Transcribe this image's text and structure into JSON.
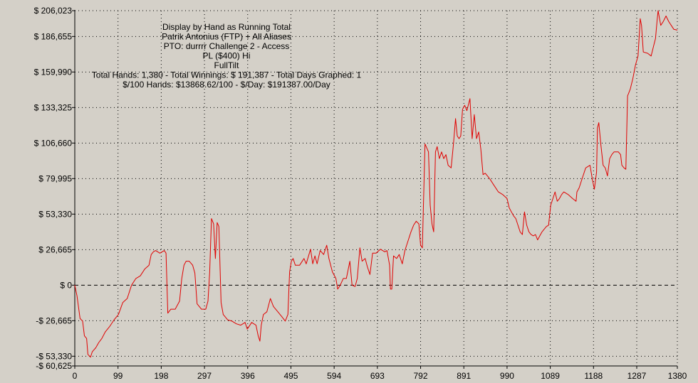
{
  "colors": {
    "background": "#d4d0c8",
    "series_line": "#e00000",
    "grid": "#000000"
  },
  "chart_data": {
    "type": "line",
    "title_lines": [
      "Display by Hand as Running Total",
      "Patrik Antonius (FTP) + All Aliases",
      "PTO: durrrr Challenge 2 - Access",
      "PL ($400) Hi",
      "FullTilt",
      "Total Hands: 1,380 - Total Winnings: $ 191,387 - Total Days Graphed: 1",
      "$/100 Hands: $13868.62/100 - $/Day: $191387.00/Day"
    ],
    "xlabel": "",
    "ylabel": "",
    "xlim": [
      0,
      1380
    ],
    "ylim": [
      -60625,
      206023
    ],
    "grid": true,
    "legend": "none",
    "x_ticks": [
      {
        "value": 0,
        "label": "0"
      },
      {
        "value": 99,
        "label": "99"
      },
      {
        "value": 198,
        "label": "198"
      },
      {
        "value": 297,
        "label": "297"
      },
      {
        "value": 396,
        "label": "396"
      },
      {
        "value": 495,
        "label": "495"
      },
      {
        "value": 594,
        "label": "594"
      },
      {
        "value": 693,
        "label": "693"
      },
      {
        "value": 792,
        "label": "792"
      },
      {
        "value": 891,
        "label": "891"
      },
      {
        "value": 990,
        "label": "990"
      },
      {
        "value": 1089,
        "label": "1089"
      },
      {
        "value": 1188,
        "label": "1188"
      },
      {
        "value": 1287,
        "label": "1287"
      },
      {
        "value": 1380,
        "label": "1380"
      }
    ],
    "y_ticks": [
      {
        "value": 206023,
        "label": "$ 206,023"
      },
      {
        "value": 186655,
        "label": "$ 186,655"
      },
      {
        "value": 159990,
        "label": "$ 159,990"
      },
      {
        "value": 133325,
        "label": "$ 133,325"
      },
      {
        "value": 106660,
        "label": "$ 106,660"
      },
      {
        "value": 79995,
        "label": "$ 79,995"
      },
      {
        "value": 53330,
        "label": "$ 53,330"
      },
      {
        "value": 26665,
        "label": "$ 26,665"
      },
      {
        "value": 0,
        "label": "$ 0"
      },
      {
        "value": -26665,
        "label": "-$ 26,665"
      },
      {
        "value": -53330,
        "label": "-$ 53,330"
      },
      {
        "value": -60625,
        "label": "-$ 60,625"
      }
    ],
    "series": [
      {
        "values": [
          [
            0,
            0
          ],
          [
            5,
            -8000
          ],
          [
            12,
            -25000
          ],
          [
            18,
            -27000
          ],
          [
            22,
            -38000
          ],
          [
            27,
            -40000
          ],
          [
            30,
            -52000
          ],
          [
            36,
            -54000
          ],
          [
            40,
            -50000
          ],
          [
            48,
            -47000
          ],
          [
            55,
            -43000
          ],
          [
            62,
            -40000
          ],
          [
            70,
            -35000
          ],
          [
            80,
            -31000
          ],
          [
            90,
            -26000
          ],
          [
            100,
            -22000
          ],
          [
            110,
            -13000
          ],
          [
            120,
            -10000
          ],
          [
            130,
            0
          ],
          [
            140,
            5000
          ],
          [
            150,
            7000
          ],
          [
            160,
            12000
          ],
          [
            170,
            15000
          ],
          [
            175,
            23000
          ],
          [
            180,
            25000
          ],
          [
            185,
            26000
          ],
          [
            195,
            24000
          ],
          [
            205,
            26000
          ],
          [
            209,
            24000
          ],
          [
            213,
            -21000
          ],
          [
            220,
            -18000
          ],
          [
            230,
            -18000
          ],
          [
            240,
            -12000
          ],
          [
            245,
            5000
          ],
          [
            250,
            15000
          ],
          [
            255,
            18000
          ],
          [
            262,
            18000
          ],
          [
            270,
            15000
          ],
          [
            275,
            9000
          ],
          [
            280,
            -14000
          ],
          [
            290,
            -18000
          ],
          [
            300,
            -18000
          ],
          [
            305,
            -12000
          ],
          [
            309,
            10000
          ],
          [
            313,
            50000
          ],
          [
            318,
            46000
          ],
          [
            322,
            20000
          ],
          [
            326,
            47000
          ],
          [
            330,
            44000
          ],
          [
            335,
            -13000
          ],
          [
            340,
            -22000
          ],
          [
            350,
            -26000
          ],
          [
            360,
            -27000
          ],
          [
            370,
            -29000
          ],
          [
            380,
            -30000
          ],
          [
            390,
            -28000
          ],
          [
            395,
            -33000
          ],
          [
            405,
            -28000
          ],
          [
            415,
            -30000
          ],
          [
            420,
            -38000
          ],
          [
            424,
            -42000
          ],
          [
            427,
            -30000
          ],
          [
            432,
            -22000
          ],
          [
            440,
            -20000
          ],
          [
            448,
            -10000
          ],
          [
            455,
            -16000
          ],
          [
            465,
            -20000
          ],
          [
            475,
            -24000
          ],
          [
            482,
            -27000
          ],
          [
            488,
            -22000
          ],
          [
            492,
            10000
          ],
          [
            496,
            18000
          ],
          [
            500,
            20000
          ],
          [
            505,
            15000
          ],
          [
            515,
            15000
          ],
          [
            525,
            20000
          ],
          [
            530,
            16000
          ],
          [
            540,
            27000
          ],
          [
            545,
            16000
          ],
          [
            550,
            22000
          ],
          [
            555,
            16000
          ],
          [
            562,
            26000
          ],
          [
            570,
            23000
          ],
          [
            577,
            30000
          ],
          [
            582,
            20000
          ],
          [
            590,
            10000
          ],
          [
            598,
            5000
          ],
          [
            602,
            -3000
          ],
          [
            608,
            0
          ],
          [
            615,
            5000
          ],
          [
            622,
            5000
          ],
          [
            630,
            18000
          ],
          [
            635,
            0
          ],
          [
            642,
            -1000
          ],
          [
            647,
            5000
          ],
          [
            653,
            28000
          ],
          [
            658,
            18000
          ],
          [
            665,
            20000
          ],
          [
            670,
            14000
          ],
          [
            676,
            8000
          ],
          [
            682,
            24000
          ],
          [
            690,
            24000
          ],
          [
            700,
            27000
          ],
          [
            710,
            25000
          ],
          [
            715,
            26000
          ],
          [
            721,
            15000
          ],
          [
            723,
            -3000
          ],
          [
            726,
            -3000
          ],
          [
            730,
            22000
          ],
          [
            737,
            20000
          ],
          [
            743,
            23000
          ],
          [
            750,
            16000
          ],
          [
            756,
            26000
          ],
          [
            760,
            30000
          ],
          [
            770,
            40000
          ],
          [
            776,
            45000
          ],
          [
            782,
            48000
          ],
          [
            788,
            46000
          ],
          [
            792,
            30000
          ],
          [
            796,
            28000
          ],
          [
            802,
            106000
          ],
          [
            810,
            100000
          ],
          [
            814,
            60000
          ],
          [
            818,
            46000
          ],
          [
            822,
            40000
          ],
          [
            826,
            100000
          ],
          [
            830,
            104000
          ],
          [
            835,
            95000
          ],
          [
            840,
            100000
          ],
          [
            845,
            95000
          ],
          [
            850,
            98000
          ],
          [
            855,
            90000
          ],
          [
            862,
            88000
          ],
          [
            867,
            105000
          ],
          [
            872,
            125000
          ],
          [
            876,
            112000
          ],
          [
            880,
            110000
          ],
          [
            884,
            112000
          ],
          [
            888,
            132000
          ],
          [
            893,
            135000
          ],
          [
            898,
            131000
          ],
          [
            905,
            140000
          ],
          [
            910,
            110000
          ],
          [
            915,
            128000
          ],
          [
            920,
            110000
          ],
          [
            925,
            115000
          ],
          [
            930,
            102000
          ],
          [
            935,
            83000
          ],
          [
            940,
            84000
          ],
          [
            950,
            80000
          ],
          [
            960,
            75000
          ],
          [
            970,
            70000
          ],
          [
            980,
            68000
          ],
          [
            990,
            65000
          ],
          [
            995,
            58000
          ],
          [
            1000,
            55000
          ],
          [
            1005,
            52000
          ],
          [
            1010,
            50000
          ],
          [
            1015,
            45000
          ],
          [
            1020,
            40000
          ],
          [
            1025,
            38000
          ],
          [
            1030,
            55000
          ],
          [
            1035,
            45000
          ],
          [
            1040,
            40000
          ],
          [
            1045,
            38000
          ],
          [
            1050,
            37000
          ],
          [
            1055,
            38000
          ],
          [
            1060,
            34000
          ],
          [
            1065,
            37000
          ],
          [
            1070,
            40000
          ],
          [
            1075,
            42000
          ],
          [
            1080,
            44000
          ],
          [
            1085,
            45000
          ],
          [
            1090,
            60000
          ],
          [
            1095,
            65000
          ],
          [
            1100,
            70000
          ],
          [
            1105,
            63000
          ],
          [
            1110,
            65000
          ],
          [
            1115,
            68000
          ],
          [
            1120,
            70000
          ],
          [
            1130,
            68000
          ],
          [
            1140,
            65000
          ],
          [
            1148,
            63000
          ],
          [
            1150,
            70000
          ],
          [
            1155,
            73000
          ],
          [
            1160,
            78000
          ],
          [
            1170,
            88000
          ],
          [
            1180,
            90000
          ],
          [
            1185,
            80000
          ],
          [
            1190,
            72000
          ],
          [
            1195,
            85000
          ],
          [
            1197,
            118000
          ],
          [
            1200,
            122000
          ],
          [
            1205,
            105000
          ],
          [
            1210,
            90000
          ],
          [
            1215,
            88000
          ],
          [
            1220,
            82000
          ],
          [
            1225,
            95000
          ],
          [
            1230,
            98000
          ],
          [
            1235,
            100000
          ],
          [
            1245,
            100000
          ],
          [
            1250,
            98000
          ],
          [
            1253,
            90000
          ],
          [
            1258,
            88000
          ],
          [
            1262,
            87000
          ],
          [
            1266,
            142000
          ],
          [
            1272,
            147000
          ],
          [
            1278,
            155000
          ],
          [
            1284,
            165000
          ],
          [
            1290,
            172000
          ],
          [
            1295,
            200000
          ],
          [
            1298,
            195000
          ],
          [
            1302,
            175000
          ],
          [
            1312,
            174000
          ],
          [
            1320,
            172000
          ],
          [
            1326,
            180000
          ],
          [
            1330,
            185000
          ],
          [
            1334,
            200000
          ],
          [
            1336,
            206023
          ],
          [
            1342,
            195000
          ],
          [
            1348,
            198000
          ],
          [
            1354,
            202000
          ],
          [
            1360,
            198000
          ],
          [
            1366,
            195000
          ],
          [
            1372,
            192000
          ],
          [
            1380,
            191387
          ]
        ]
      }
    ]
  }
}
